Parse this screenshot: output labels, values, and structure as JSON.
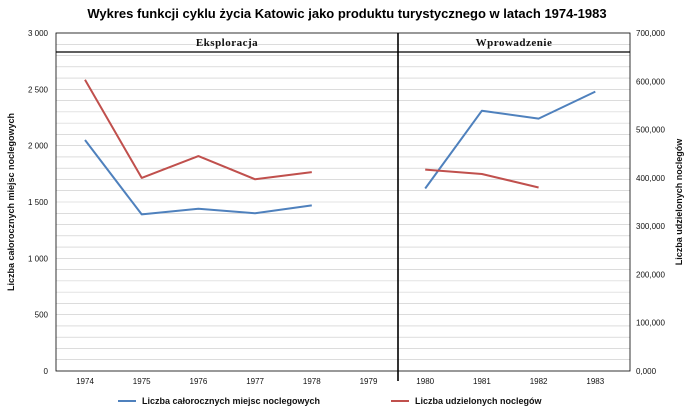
{
  "chart_data": {
    "type": "line",
    "title": "Wykres funkcji cyklu życia Katowic jako produktu turystycznego w latach 1974-1983",
    "categories": [
      "1974",
      "1975",
      "1976",
      "1977",
      "1978",
      "1979",
      "1980",
      "1981",
      "1982",
      "1983"
    ],
    "ylabel_left": "Liczba całorocznych miejsc noclegowych",
    "ylabel_right": "Liczba udzielonych noclegów",
    "yticks_left": [
      "0",
      "500",
      "1 000",
      "1 500",
      "2 000",
      "2 500",
      "3 000"
    ],
    "yticks_right": [
      "0,000",
      "100,000",
      "200,000",
      "300,000",
      "400,000",
      "500,000",
      "600,000",
      "700,000"
    ],
    "ylim_left": [
      0,
      3000
    ],
    "ylim_right": [
      0,
      700000
    ],
    "phases": [
      "Eksploracja",
      "Wprowadzenie"
    ],
    "grid": true,
    "legend_position": "bottom",
    "series": [
      {
        "name": "Liczba całorocznych miejsc noclegowych",
        "axis": "left",
        "color": "#4f81bd",
        "values": [
          2050,
          1390,
          1440,
          1400,
          1470,
          null,
          1620,
          2310,
          2240,
          2480
        ]
      },
      {
        "name": "Liczba udzielonych noclegów",
        "axis": "right",
        "color": "#c0504d",
        "values": [
          603000,
          400000,
          445000,
          397000,
          412000,
          null,
          417000,
          408000,
          380000,
          null
        ]
      }
    ]
  }
}
